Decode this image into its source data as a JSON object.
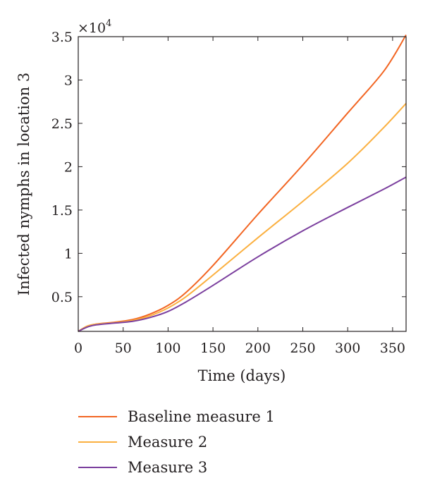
{
  "chart_data": {
    "type": "line",
    "title": "",
    "xlabel": "Time (days)",
    "ylabel": "Infected nymphs in location 3",
    "y_multiplier_label": "×10",
    "y_multiplier_exponent": "4",
    "xlim": [
      0,
      365
    ],
    "ylim": [
      0.1,
      3.5
    ],
    "xticks": [
      0,
      50,
      100,
      150,
      200,
      250,
      300,
      350
    ],
    "xtick_labels": [
      "0",
      "50",
      "100",
      "150",
      "200",
      "250",
      "300",
      "350"
    ],
    "yticks": [
      0.5,
      1,
      1.5,
      2,
      2.5,
      3,
      3.5
    ],
    "ytick_labels": [
      "0.5",
      "1",
      "1.5",
      "2",
      "2.5",
      "3",
      "3.5"
    ],
    "grid": false,
    "legend_position": "bottom",
    "x": [
      0,
      10,
      20,
      40,
      60,
      80,
      100,
      120,
      150,
      200,
      250,
      300,
      340,
      365
    ],
    "series": [
      {
        "name": "Baseline measure 1",
        "color": "#f26522",
        "values": [
          0.1,
          0.16,
          0.185,
          0.205,
          0.235,
          0.3,
          0.4,
          0.55,
          0.86,
          1.45,
          2.02,
          2.62,
          3.1,
          3.52
        ]
      },
      {
        "name": "Measure 2",
        "color": "#fbb040",
        "values": [
          0.1,
          0.16,
          0.183,
          0.2,
          0.225,
          0.28,
          0.37,
          0.5,
          0.75,
          1.18,
          1.6,
          2.04,
          2.45,
          2.73
        ]
      },
      {
        "name": "Measure 3",
        "color": "#7b3f9e",
        "values": [
          0.1,
          0.15,
          0.175,
          0.195,
          0.215,
          0.26,
          0.33,
          0.44,
          0.63,
          0.96,
          1.26,
          1.53,
          1.74,
          1.88
        ]
      }
    ]
  }
}
